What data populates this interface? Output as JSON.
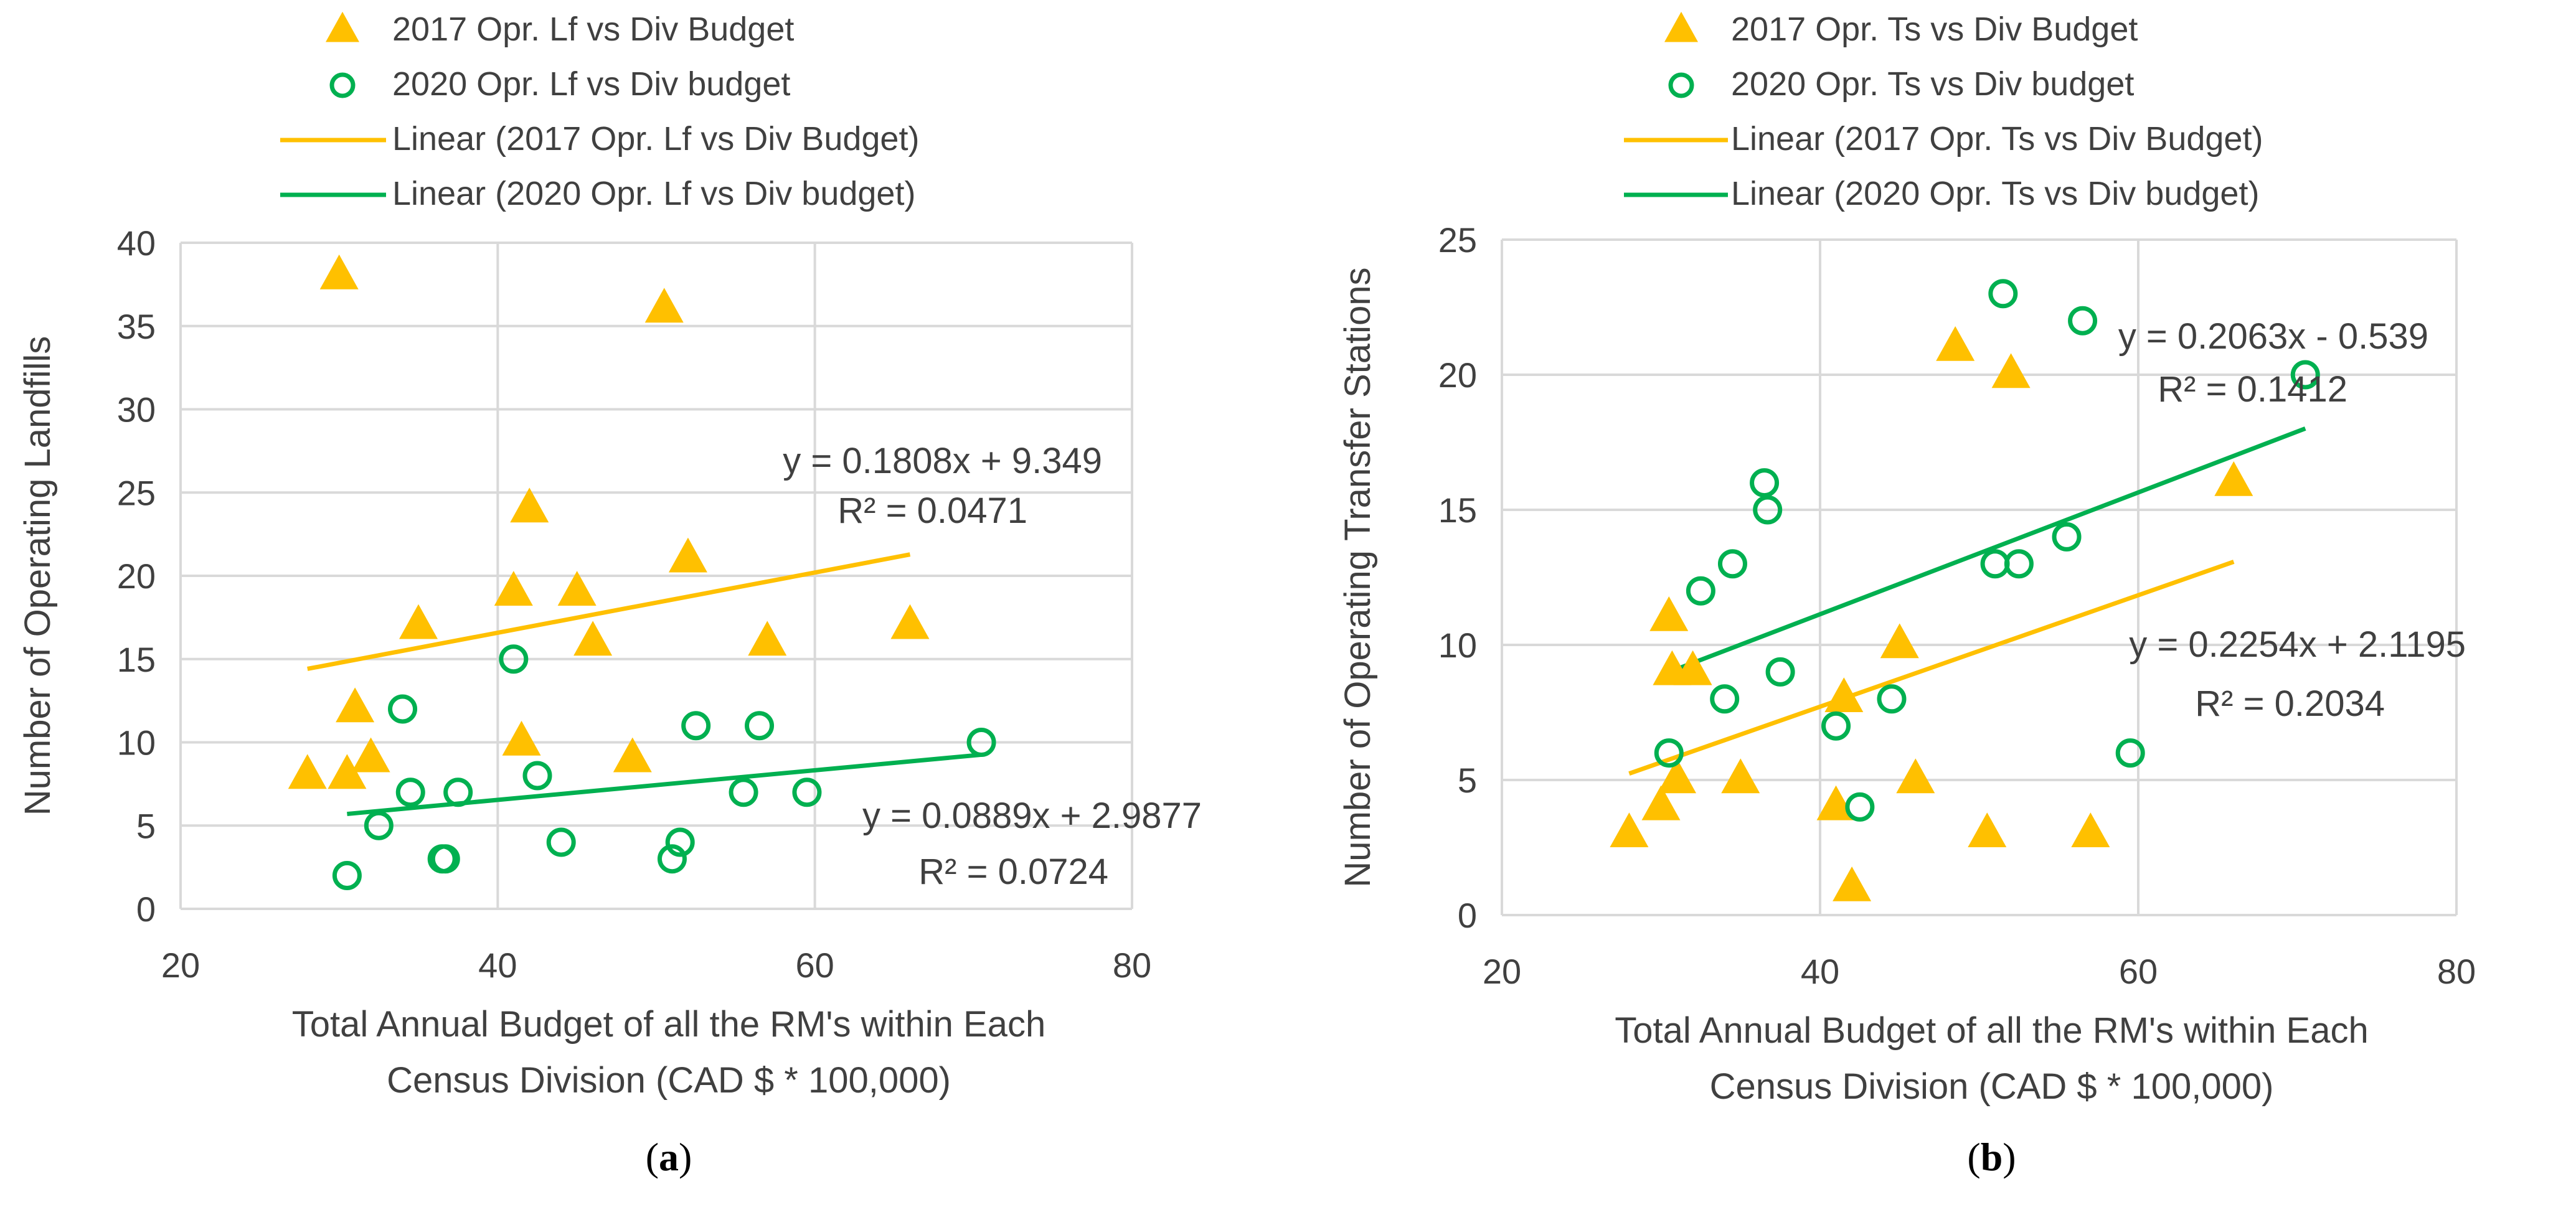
{
  "colors": {
    "y2017": "#FFC000",
    "y2020": "#00B050",
    "text": "#404040",
    "grid": "#D9D9D9"
  },
  "chart_data": [
    {
      "id": "a",
      "type": "scatter",
      "panel_label": "(a)",
      "panel_label_bold": "a",
      "ylabel": "Number of Operating Landfills",
      "xlabel_lines": [
        "Total Annual Budget of all the RM's within Each",
        "Census Division (CAD $ * 100,000)"
      ],
      "xlim": [
        20,
        80
      ],
      "ylim": [
        0,
        40
      ],
      "xticks": [
        20,
        40,
        60,
        80
      ],
      "yticks": [
        0,
        5,
        10,
        15,
        20,
        25,
        30,
        35,
        40
      ],
      "legend": [
        {
          "label": "2017 Opr. Lf vs Div Budget",
          "kind": "triangle",
          "color": "#FFC000"
        },
        {
          "label": "2020 Opr. Lf vs Div budget",
          "kind": "circle",
          "color": "#00B050"
        },
        {
          "label": "Linear (2017 Opr. Lf vs Div Budget)",
          "kind": "line",
          "color": "#FFC000"
        },
        {
          "label": "Linear (2020 Opr. Lf vs Div budget)",
          "kind": "line",
          "color": "#00B050"
        }
      ],
      "series": [
        {
          "name": "2017 Opr. Lf vs Div Budget",
          "marker": "triangle",
          "color": "#FFC000",
          "points": [
            [
              28,
              8
            ],
            [
              30,
              38
            ],
            [
              30.5,
              8
            ],
            [
              31,
              12
            ],
            [
              32,
              9
            ],
            [
              35,
              17
            ],
            [
              41,
              19
            ],
            [
              41.5,
              10
            ],
            [
              42,
              24
            ],
            [
              45,
              19
            ],
            [
              46,
              16
            ],
            [
              48.5,
              9
            ],
            [
              50.5,
              36
            ],
            [
              52,
              21
            ],
            [
              57,
              16
            ],
            [
              66,
              17
            ]
          ]
        },
        {
          "name": "2020 Opr. Lf vs Div budget",
          "marker": "circle",
          "color": "#00B050",
          "points": [
            [
              30.5,
              2
            ],
            [
              32.5,
              5
            ],
            [
              34,
              12
            ],
            [
              34.5,
              7
            ],
            [
              36.5,
              3
            ],
            [
              36.7,
              3
            ],
            [
              37.5,
              7
            ],
            [
              41,
              15
            ],
            [
              42.5,
              8
            ],
            [
              44,
              4
            ],
            [
              51,
              3
            ],
            [
              51.5,
              4
            ],
            [
              52.5,
              11
            ],
            [
              55.5,
              7
            ],
            [
              56.5,
              11
            ],
            [
              59.5,
              7
            ],
            [
              70.5,
              10
            ]
          ]
        }
      ],
      "trendlines": [
        {
          "name": "Linear (2017 Opr. Lf vs Div Budget)",
          "color": "#FFC000",
          "slope": 0.1808,
          "intercept": 9.349,
          "x_range": [
            28,
            66
          ],
          "equation": "y = 0.1808x + 9.349",
          "r2": "R² = 0.0471"
        },
        {
          "name": "Linear (2020 Opr. Lf vs Div budget)",
          "color": "#00B050",
          "slope": 0.0889,
          "intercept": 2.9877,
          "x_range": [
            30.5,
            70.5
          ],
          "equation": "y = 0.0889x + 2.9877",
          "r2": "R² = 0.0724"
        }
      ]
    },
    {
      "id": "b",
      "type": "scatter",
      "panel_label": "(b)",
      "panel_label_bold": "b",
      "ylabel": "Number of Operating Transfer Stations",
      "xlabel_lines": [
        "Total Annual Budget of all the RM's within Each",
        "Census Division (CAD $ * 100,000)"
      ],
      "xlim": [
        20,
        80
      ],
      "ylim": [
        0,
        25
      ],
      "xticks": [
        20,
        40,
        60,
        80
      ],
      "yticks": [
        0,
        5,
        10,
        15,
        20,
        25
      ],
      "legend": [
        {
          "label": "2017 Opr. Ts vs Div Budget",
          "kind": "triangle",
          "color": "#FFC000"
        },
        {
          "label": "2020 Opr. Ts vs Div budget",
          "kind": "circle",
          "color": "#00B050"
        },
        {
          "label": "Linear (2017 Opr. Ts vs Div Budget)",
          "kind": "line",
          "color": "#FFC000"
        },
        {
          "label": "Linear (2020 Opr. Ts vs Div budget)",
          "kind": "line",
          "color": "#00B050"
        }
      ],
      "series": [
        {
          "name": "2017 Opr. Ts vs Div Budget",
          "marker": "triangle",
          "color": "#FFC000",
          "points": [
            [
              28,
              3
            ],
            [
              30,
              4
            ],
            [
              30.5,
              11
            ],
            [
              30.7,
              9
            ],
            [
              31,
              5
            ],
            [
              32,
              9
            ],
            [
              35,
              5
            ],
            [
              41,
              4
            ],
            [
              41.5,
              8
            ],
            [
              42,
              1
            ],
            [
              45,
              10
            ],
            [
              46,
              5
            ],
            [
              48.5,
              21
            ],
            [
              50.5,
              3
            ],
            [
              52,
              20
            ],
            [
              57,
              3
            ],
            [
              66,
              16
            ]
          ]
        },
        {
          "name": "2020 Opr. Ts vs Div budget",
          "marker": "circle",
          "color": "#00B050",
          "points": [
            [
              30.5,
              6
            ],
            [
              32.5,
              12
            ],
            [
              34,
              8
            ],
            [
              34.5,
              13
            ],
            [
              36.5,
              16
            ],
            [
              36.7,
              15
            ],
            [
              37.5,
              9
            ],
            [
              41,
              7
            ],
            [
              42.5,
              4
            ],
            [
              44.5,
              8
            ],
            [
              51,
              13
            ],
            [
              51.5,
              23
            ],
            [
              52.5,
              13
            ],
            [
              55.5,
              14
            ],
            [
              56.5,
              22
            ],
            [
              59.5,
              6
            ],
            [
              70.5,
              20
            ]
          ]
        }
      ],
      "trendlines": [
        {
          "name": "Linear (2017 Opr. Ts vs Div Budget)",
          "color": "#FFC000",
          "slope": 0.2063,
          "intercept": -0.539,
          "x_range": [
            28,
            66
          ],
          "equation": "y = 0.2063x - 0.539",
          "r2": "R² = 0.1412"
        },
        {
          "name": "Linear (2020 Opr. Ts vs Div budget)",
          "color": "#00B050",
          "slope": 0.2254,
          "intercept": 2.1195,
          "x_range": [
            30.5,
            70.5
          ],
          "equation": "y = 0.2254x + 2.1195",
          "r2": "R² = 0.2034"
        }
      ]
    }
  ]
}
